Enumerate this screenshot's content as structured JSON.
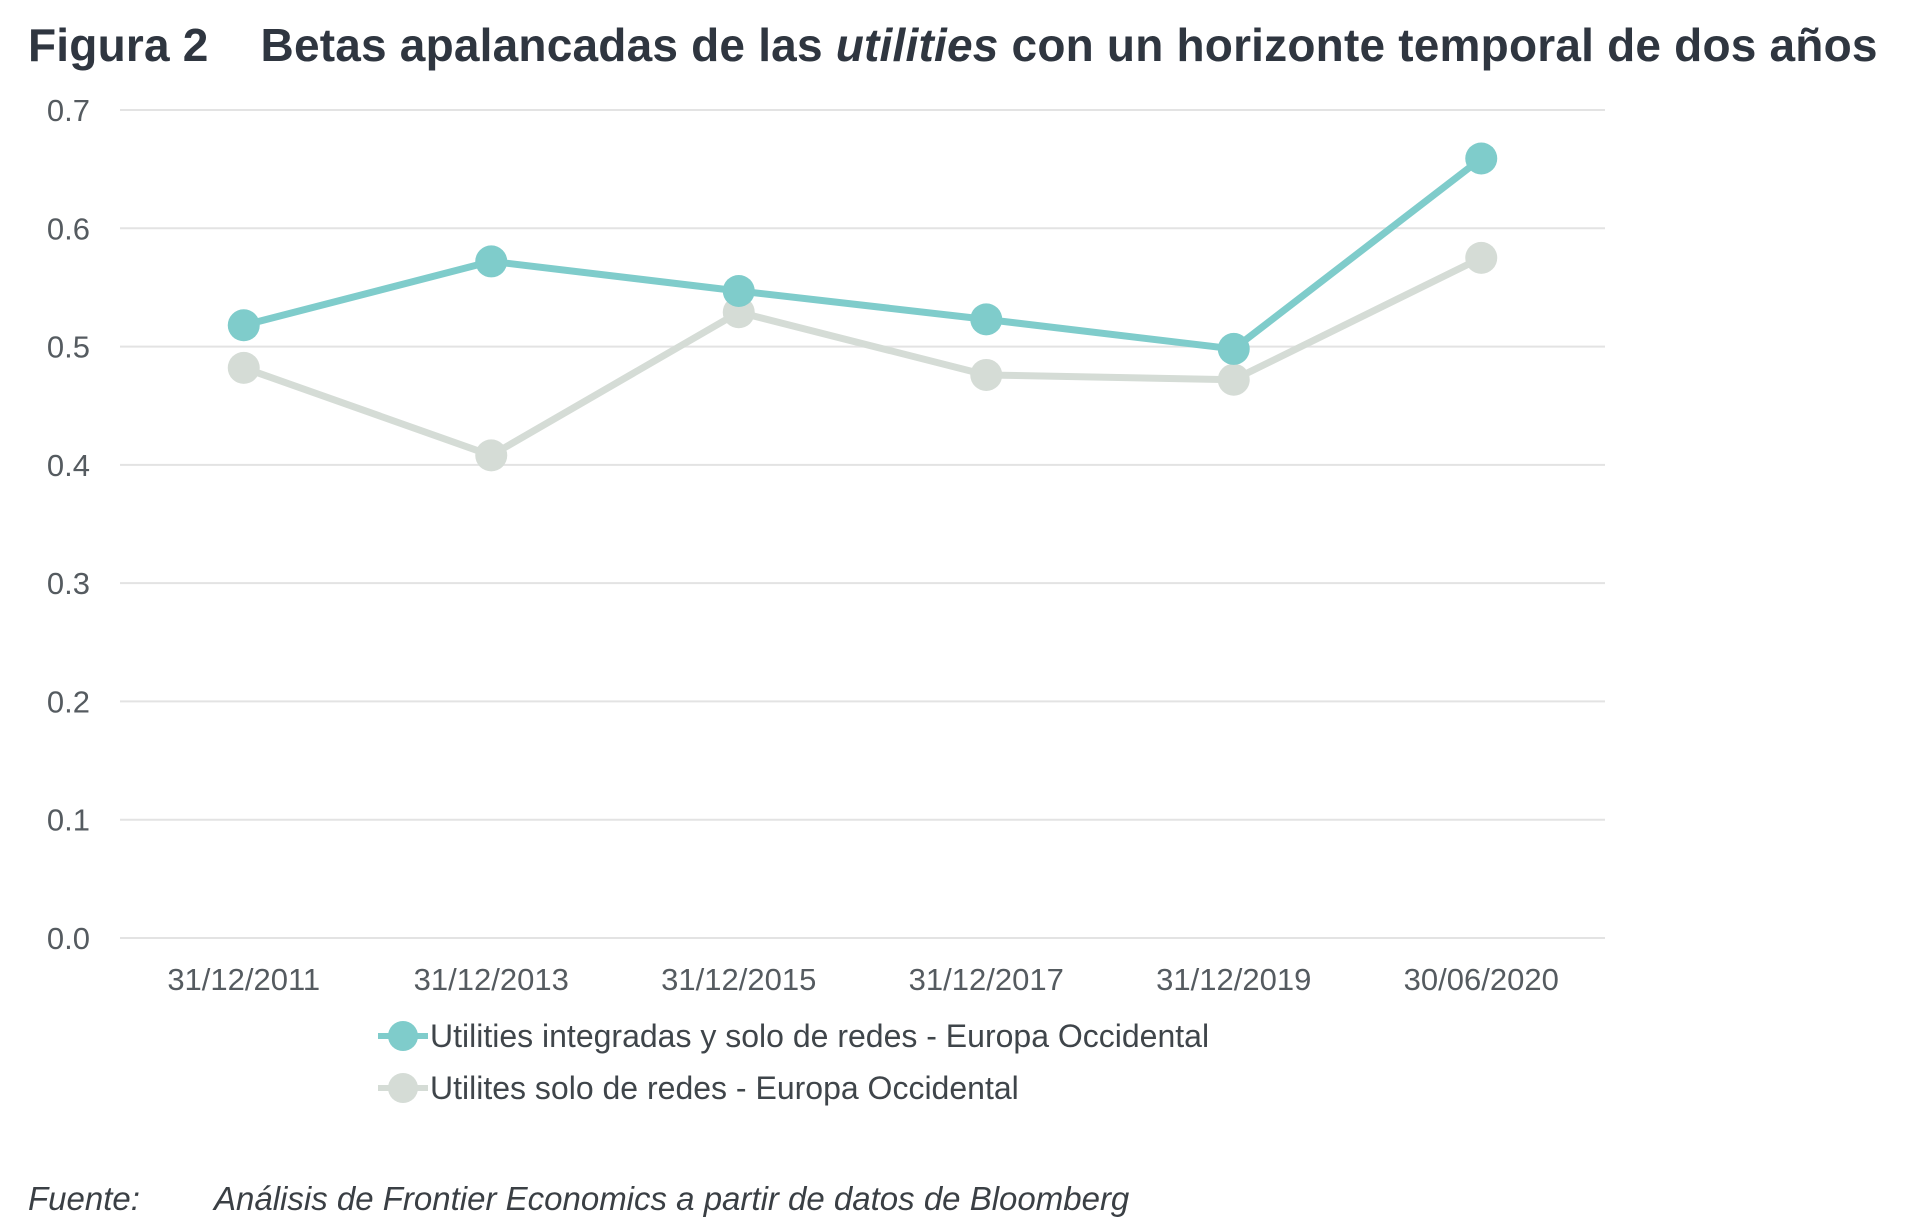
{
  "title": {
    "prefix": "Figura 2",
    "before_italic": "Betas apalancadas de las ",
    "italic": "utilities",
    "after_italic": " con un horizonte temporal de dos años"
  },
  "source": {
    "label": "Fuente:",
    "text": "Análisis de Frontier Economics a partir de datos de Bloomberg"
  },
  "chart_data": {
    "type": "line",
    "title": "Betas apalancadas de las utilities con un horizonte temporal de dos años",
    "categories": [
      "31/12/2011",
      "31/12/2013",
      "31/12/2015",
      "31/12/2017",
      "31/12/2019",
      "30/06/2020"
    ],
    "ylim": [
      0,
      0.7
    ],
    "yticks": [
      "0.0",
      "0.1",
      "0.2",
      "0.3",
      "0.4",
      "0.5",
      "0.6",
      "0.7"
    ],
    "grid": true,
    "legend_position": "bottom",
    "series": [
      {
        "name": "Utilities integradas y solo de redes - Europa Occidental",
        "color": "#7fcccb",
        "values": [
          0.518,
          0.572,
          0.547,
          0.523,
          0.498,
          0.659
        ]
      },
      {
        "name": "Utilites solo de redes - Europa Occidental",
        "color": "#d5dcd6",
        "values": [
          0.482,
          0.408,
          0.529,
          0.476,
          0.472,
          0.575
        ]
      }
    ]
  }
}
